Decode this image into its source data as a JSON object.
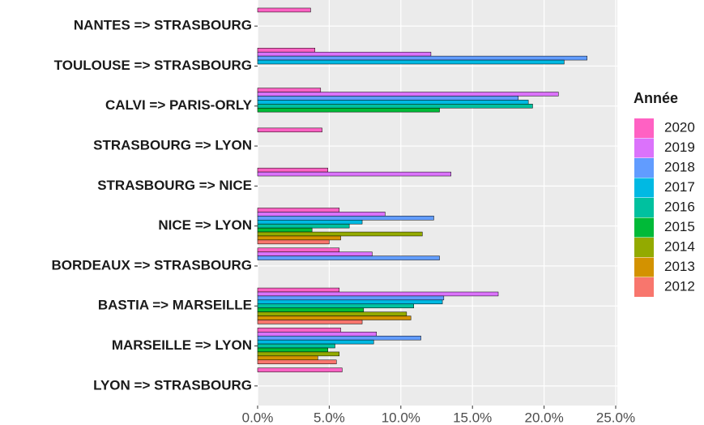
{
  "chart_data": {
    "type": "barh",
    "legend_title": "Année",
    "categories": [
      "NANTES => STRASBOURG",
      "TOULOUSE => STRASBOURG",
      "CALVI => PARIS-ORLY",
      "STRASBOURG => LYON",
      "STRASBOURG => NICE",
      "NICE => LYON",
      "BORDEAUX => STRASBOURG",
      "BASTIA => MARSEILLE",
      "MARSEILLE => LYON",
      "LYON => STRASBOURG"
    ],
    "series": [
      {
        "name": "2020",
        "color": "#FF61C3",
        "values": [
          3.7,
          4.0,
          4.4,
          4.5,
          4.9,
          5.7,
          5.7,
          5.7,
          5.8,
          5.9
        ]
      },
      {
        "name": "2019",
        "color": "#DB72FB",
        "values": [
          null,
          12.1,
          21.0,
          null,
          13.5,
          8.9,
          8.0,
          16.8,
          8.3,
          null
        ]
      },
      {
        "name": "2018",
        "color": "#619CFF",
        "values": [
          null,
          23.0,
          18.2,
          null,
          null,
          12.3,
          12.7,
          13.0,
          11.4,
          null
        ]
      },
      {
        "name": "2017",
        "color": "#00B9E3",
        "values": [
          null,
          21.4,
          18.9,
          null,
          null,
          7.3,
          null,
          12.9,
          8.1,
          null
        ]
      },
      {
        "name": "2016",
        "color": "#00C19F",
        "values": [
          null,
          null,
          19.2,
          null,
          null,
          6.4,
          null,
          10.9,
          5.4,
          null
        ]
      },
      {
        "name": "2015",
        "color": "#00BA38",
        "values": [
          null,
          null,
          12.7,
          null,
          null,
          3.8,
          null,
          7.4,
          4.9,
          null
        ]
      },
      {
        "name": "2014",
        "color": "#93AA00",
        "values": [
          null,
          null,
          null,
          null,
          null,
          11.5,
          null,
          10.4,
          5.7,
          null
        ]
      },
      {
        "name": "2013",
        "color": "#D39200",
        "values": [
          null,
          null,
          null,
          null,
          null,
          5.8,
          null,
          10.7,
          4.2,
          null
        ]
      },
      {
        "name": "2012",
        "color": "#F8766D",
        "values": [
          null,
          null,
          null,
          null,
          null,
          5.0,
          null,
          7.3,
          5.5,
          null
        ]
      }
    ],
    "xlim": [
      0,
      25
    ],
    "xticks": [
      {
        "value": 0,
        "label": "0.0%"
      },
      {
        "value": 5,
        "label": "5.0%"
      },
      {
        "value": 10,
        "label": "10.0%"
      },
      {
        "value": 15,
        "label": "15.0%"
      },
      {
        "value": 20,
        "label": "20.0%"
      },
      {
        "value": 25,
        "label": "25.0%"
      }
    ],
    "grid": true,
    "legend": "right"
  }
}
